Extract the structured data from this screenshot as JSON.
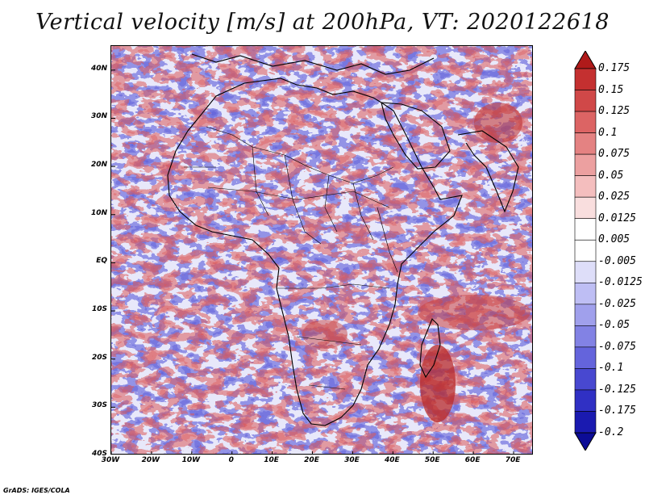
{
  "title": "Vertical velocity [m/s] at 200hPa, VT: 2020122618",
  "credit": "GrADS: IGES/COLA",
  "map": {
    "projection": "latlon",
    "lon_range": [
      -30,
      75
    ],
    "lat_range": [
      -40,
      45
    ],
    "lat_labels": [
      "40N",
      "30N",
      "20N",
      "10N",
      "EQ",
      "10S",
      "20S",
      "30S",
      "40S"
    ],
    "lat_values": [
      40,
      30,
      20,
      10,
      0,
      -10,
      -20,
      -30,
      -40
    ],
    "lon_labels": [
      "30W",
      "20W",
      "10W",
      "0",
      "10E",
      "20E",
      "30E",
      "40E",
      "50E",
      "60E",
      "70E"
    ],
    "lon_values": [
      -30,
      -20,
      -10,
      0,
      10,
      20,
      30,
      40,
      50,
      60,
      70
    ]
  },
  "colorbar": {
    "levels": [
      "0.175",
      "0.15",
      "0.125",
      "0.1",
      "0.075",
      "0.05",
      "0.025",
      "0.0125",
      "0.005",
      "-0.005",
      "-0.0125",
      "-0.025",
      "-0.05",
      "-0.075",
      "-0.1",
      "-0.125",
      "-0.175",
      "-0.2"
    ],
    "colors": [
      "#b01a1a",
      "#c43030",
      "#d04848",
      "#dc6464",
      "#e48282",
      "#eca0a0",
      "#f4bebe",
      "#f9dede",
      "#ffffff",
      "#ffffff",
      "#dedef9",
      "#bebef4",
      "#a0a0ec",
      "#8282e4",
      "#6464dc",
      "#4848d0",
      "#3030c4",
      "#1a1ab0",
      "#0c0c96"
    ]
  },
  "colors": {
    "positive": "#e86a6a",
    "negative": "#6a6ae8",
    "coastline": "#000000"
  }
}
